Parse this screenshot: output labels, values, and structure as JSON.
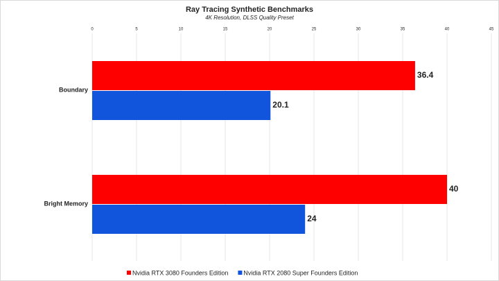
{
  "chart_data": {
    "type": "hbar",
    "title": "Ray Tracing Synthetic Benchmarks",
    "subtitle": "4K Resolution, DLSS Quality Preset",
    "categories": [
      "Boundary",
      "Bright Memory"
    ],
    "series": [
      {
        "name": "Nvidia RTX 3080 Founders Edition",
        "color": "#ff0000",
        "values": [
          36.4,
          40
        ]
      },
      {
        "name": "Nvidia RTX 2080 Super Founders Edition",
        "color": "#1155dd",
        "values": [
          20.1,
          24
        ]
      }
    ],
    "xlim": [
      0,
      45
    ],
    "xticks": [
      0,
      5,
      10,
      15,
      20,
      25,
      30,
      35,
      40,
      45
    ],
    "grid": true,
    "legend": "bottom"
  }
}
